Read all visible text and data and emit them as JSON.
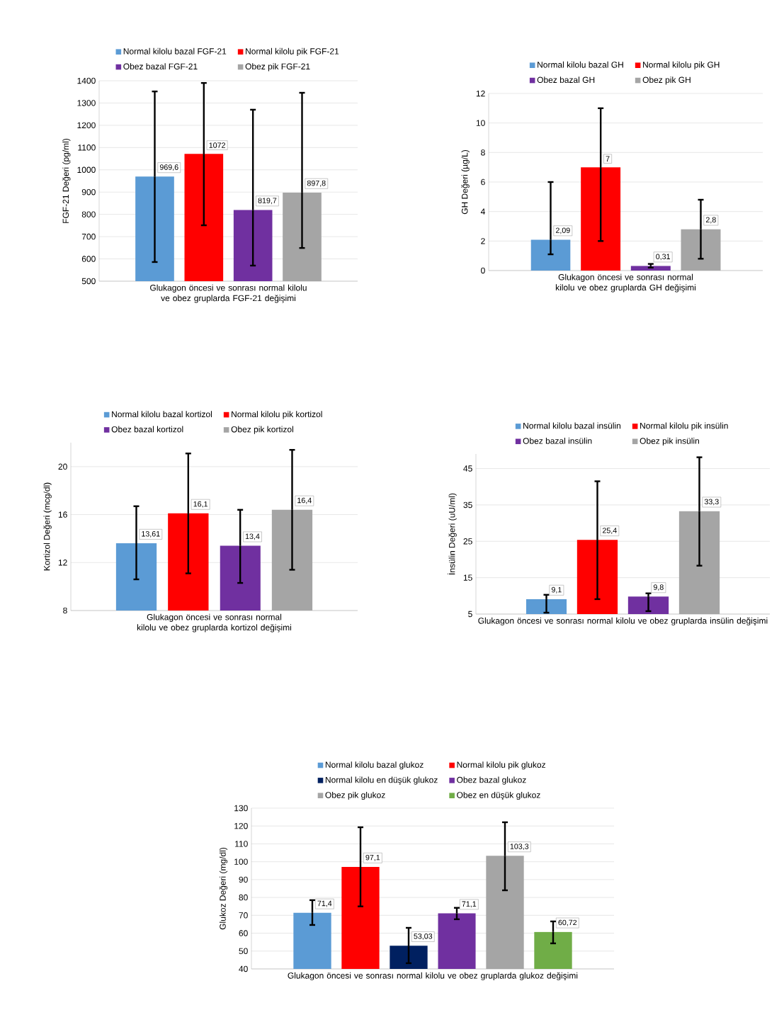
{
  "chart_data": [
    {
      "type": "bar",
      "categories": [
        "Glukagon öncesi ve sonrası normal kilolu ve obez gruplarda FGF-21 değişimi"
      ],
      "ylabel": "FGF-21 Değeri (pg/ml)",
      "ylim": [
        500,
        1400
      ],
      "yticks": [
        500,
        600,
        700,
        800,
        900,
        1000,
        1100,
        1200,
        1300,
        1400
      ],
      "grid": "y",
      "legend": "top",
      "series": [
        {
          "name": "Normal kilolu bazal FGF-21",
          "color": "#5b9bd5",
          "values": [
            969.6
          ],
          "value_labels": [
            "969,6"
          ],
          "errors": [
            [
              586,
              1352
            ]
          ]
        },
        {
          "name": "Normal kilolu pik FGF-21",
          "color": "#ff0000",
          "values": [
            1072
          ],
          "value_labels": [
            "1072"
          ],
          "errors": [
            [
              751,
              1390
            ]
          ]
        },
        {
          "name": "Obez bazal FGF-21",
          "color": "#7030a0",
          "values": [
            819.7
          ],
          "value_labels": [
            "819,7"
          ],
          "errors": [
            [
              570,
              1270
            ]
          ]
        },
        {
          "name": "Obez pik FGF-21",
          "color": "#a5a5a5",
          "values": [
            897.8
          ],
          "value_labels": [
            "897,8"
          ],
          "errors": [
            [
              649,
              1346
            ]
          ]
        }
      ]
    },
    {
      "type": "bar",
      "categories": [
        "Glukagon öncesi ve sonrası normal kilolu ve obez gruplarda GH değişimi"
      ],
      "ylabel": "GH Değeri (µg/L)",
      "ylim": [
        0,
        12
      ],
      "yticks": [
        0,
        2,
        4,
        6,
        8,
        10,
        12
      ],
      "grid": "y",
      "legend": "top",
      "series": [
        {
          "name": "Normal kilolu bazal GH",
          "color": "#5b9bd5",
          "values": [
            2.09
          ],
          "value_labels": [
            "2,09"
          ],
          "errors": [
            [
              1.1,
              6.0
            ]
          ]
        },
        {
          "name": "Normal kilolu pik GH",
          "color": "#ff0000",
          "values": [
            7
          ],
          "value_labels": [
            "7"
          ],
          "errors": [
            [
              2.0,
              11.0
            ]
          ]
        },
        {
          "name": "Obez bazal GH",
          "color": "#7030a0",
          "values": [
            0.31
          ],
          "value_labels": [
            "0,31"
          ],
          "errors": [
            [
              0.2,
              0.45
            ]
          ]
        },
        {
          "name": "Obez pik GH",
          "color": "#a5a5a5",
          "values": [
            2.8
          ],
          "value_labels": [
            "2,8"
          ],
          "errors": [
            [
              0.8,
              4.8
            ]
          ]
        }
      ]
    },
    {
      "type": "bar",
      "categories": [
        "Glukagon öncesi ve sonrası normal kilolu ve obez gruplarda kortizol değişimi"
      ],
      "ylabel": "Kortizol  Değeri (mcg/dl)",
      "ylim": [
        8,
        22
      ],
      "yticks": [
        8,
        12,
        16,
        20
      ],
      "grid": "y",
      "legend": "top",
      "series": [
        {
          "name": "Normal kilolu bazal kortizol",
          "color": "#5b9bd5",
          "values": [
            13.61
          ],
          "value_labels": [
            "13,61"
          ],
          "errors": [
            [
              10.6,
              16.7
            ]
          ]
        },
        {
          "name": "Normal kilolu pik kortizol",
          "color": "#ff0000",
          "values": [
            16.1
          ],
          "value_labels": [
            "16,1"
          ],
          "errors": [
            [
              11.1,
              21.1
            ]
          ]
        },
        {
          "name": "Obez bazal kortizol",
          "color": "#7030a0",
          "values": [
            13.4
          ],
          "value_labels": [
            "13,4"
          ],
          "errors": [
            [
              10.3,
              16.4
            ]
          ]
        },
        {
          "name": "Obez pik kortizol",
          "color": "#a5a5a5",
          "values": [
            16.4
          ],
          "value_labels": [
            "16,4"
          ],
          "errors": [
            [
              11.4,
              21.4
            ]
          ]
        }
      ]
    },
    {
      "type": "bar",
      "categories": [
        "Glukagon öncesi ve sonrası normal kilolu ve obez gruplarda insülin değişimi"
      ],
      "ylabel": "İnsülin Değeri (uU/ml)",
      "ylim": [
        5,
        49
      ],
      "yticks": [
        5,
        15,
        25,
        35,
        45
      ],
      "grid": "y",
      "legend": "top",
      "series": [
        {
          "name": "Normal kilolu bazal insülin",
          "color": "#5b9bd5",
          "values": [
            9.1
          ],
          "value_labels": [
            "9,1"
          ],
          "errors": [
            [
              5.4,
              10.3
            ]
          ]
        },
        {
          "name": "Normal kilolu pik insülin",
          "color": "#ff0000",
          "values": [
            25.4
          ],
          "value_labels": [
            "25,4"
          ],
          "errors": [
            [
              9.1,
              41.5
            ]
          ]
        },
        {
          "name": "Obez bazal insülin",
          "color": "#7030a0",
          "values": [
            9.8
          ],
          "value_labels": [
            "9,8"
          ],
          "errors": [
            [
              5.8,
              10.7
            ]
          ]
        },
        {
          "name": "Obez pik insülin",
          "color": "#a5a5a5",
          "values": [
            33.3
          ],
          "value_labels": [
            "33,3"
          ],
          "errors": [
            [
              18.3,
              48.1
            ]
          ]
        }
      ]
    },
    {
      "type": "bar",
      "categories": [
        "Glukagon öncesi ve sonrası normal kilolu ve obez gruplarda glukoz değişimi"
      ],
      "ylabel": "Glukoz Değeri (mg/dl)",
      "ylim": [
        40,
        130
      ],
      "yticks": [
        40,
        50,
        60,
        70,
        80,
        90,
        100,
        110,
        120,
        130
      ],
      "grid": "y",
      "legend": "top",
      "series": [
        {
          "name": "Normal kilolu bazal glukoz",
          "color": "#5b9bd5",
          "values": [
            71.4
          ],
          "value_labels": [
            "71,4"
          ],
          "errors": [
            [
              64.6,
              78.5
            ]
          ]
        },
        {
          "name": "Normal kilolu pik glukoz",
          "color": "#ff0000",
          "values": [
            97.1
          ],
          "value_labels": [
            "97,1"
          ],
          "errors": [
            [
              75,
              119.3
            ]
          ]
        },
        {
          "name": "Normal kilolu en düşük glukoz",
          "color": "#002060",
          "values": [
            53.03
          ],
          "value_labels": [
            "53,03"
          ],
          "errors": [
            [
              43.2,
              63
            ]
          ]
        },
        {
          "name": "Obez bazal glukoz",
          "color": "#7030a0",
          "values": [
            71.1
          ],
          "value_labels": [
            "71,1"
          ],
          "errors": [
            [
              67.8,
              74.2
            ]
          ]
        },
        {
          "name": "Obez pik glukoz",
          "color": "#a5a5a5",
          "values": [
            103.3
          ],
          "value_labels": [
            "103,3"
          ],
          "errors": [
            [
              84,
              122.1
            ]
          ]
        },
        {
          "name": "Obez en düşük glukoz",
          "color": "#70ad47",
          "values": [
            60.72
          ],
          "value_labels": [
            "60,72"
          ],
          "errors": [
            [
              54.3,
              66.6
            ]
          ]
        }
      ]
    }
  ]
}
